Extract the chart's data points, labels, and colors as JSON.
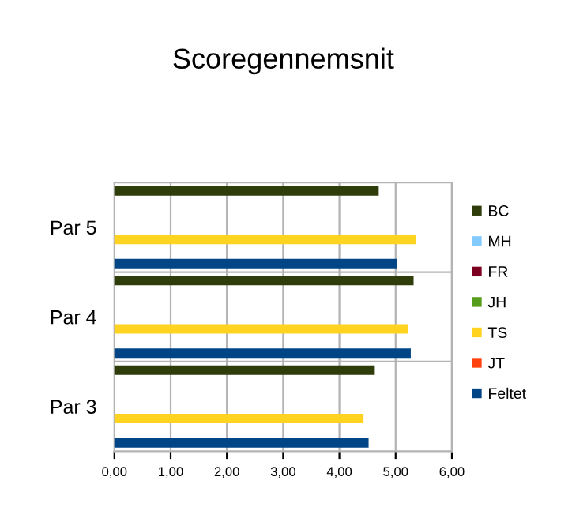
{
  "chart_data": {
    "type": "bar",
    "orientation": "horizontal",
    "title": "Scoregennemsnit",
    "categories": [
      "Par 5",
      "Par 4",
      "Par 3"
    ],
    "series": [
      {
        "name": "BC",
        "color": "#2e3d0a",
        "values": [
          4.68,
          5.3,
          4.61
        ]
      },
      {
        "name": "MH",
        "color": "#83caff",
        "values": [
          null,
          null,
          null
        ]
      },
      {
        "name": "FR",
        "color": "#7e0021",
        "values": [
          null,
          null,
          null
        ]
      },
      {
        "name": "JH",
        "color": "#579d1c",
        "values": [
          null,
          null,
          null
        ]
      },
      {
        "name": "TS",
        "color": "#ffd320",
        "values": [
          5.34,
          5.2,
          4.41
        ]
      },
      {
        "name": "JT",
        "color": "#ff420e",
        "values": [
          null,
          null,
          null
        ]
      },
      {
        "name": "Feltet",
        "color": "#004586",
        "values": [
          5.0,
          5.25,
          4.5
        ]
      }
    ],
    "xlim": [
      0,
      6
    ],
    "xticks": [
      {
        "value": 0,
        "label": "0,00"
      },
      {
        "value": 1,
        "label": "1,00"
      },
      {
        "value": 2,
        "label": "2,00"
      },
      {
        "value": 3,
        "label": "3,00"
      },
      {
        "value": 4,
        "label": "4,00"
      },
      {
        "value": 5,
        "label": "5,00"
      },
      {
        "value": 6,
        "label": "6,00"
      }
    ],
    "grid": true,
    "legend": "right"
  }
}
